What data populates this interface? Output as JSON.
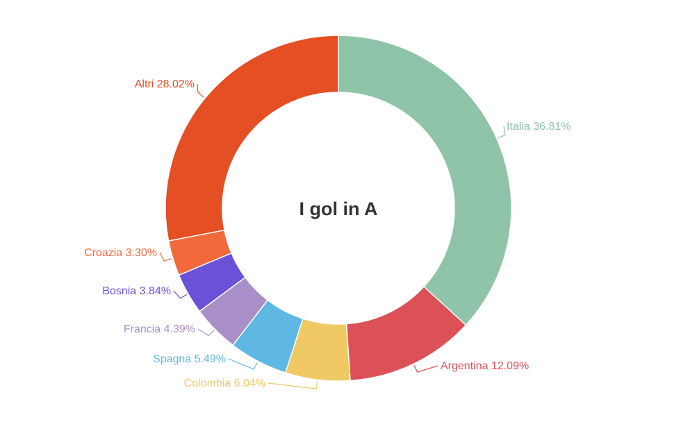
{
  "chart_data": {
    "type": "pie",
    "title": "I gol in A",
    "slices": [
      {
        "label": "Italia",
        "value": 36.81,
        "display": "Italia 36.81%",
        "color": "#8fc4a8"
      },
      {
        "label": "Argentina",
        "value": 12.09,
        "display": "Argentina 12.09%",
        "color": "#dc5158"
      },
      {
        "label": "Colombia",
        "value": 6.04,
        "display": "Colombia 6.04%",
        "color": "#f0c965"
      },
      {
        "label": "Spagna",
        "value": 5.49,
        "display": "Spagna 5.49%",
        "color": "#5fb7e4"
      },
      {
        "label": "Francia",
        "value": 4.39,
        "display": "Francia 4.39%",
        "color": "#a98fc8"
      },
      {
        "label": "Bosnia",
        "value": 3.84,
        "display": "Bosnia 3.84%",
        "color": "#6b50d8"
      },
      {
        "label": "Croazia",
        "value": 3.3,
        "display": "Croazia 3.30%",
        "color": "#f26a3c"
      },
      {
        "label": "Altri",
        "value": 28.02,
        "display": "Altri 28.02%",
        "color": "#e44f24"
      }
    ],
    "legend": "none",
    "labels_outside": true
  }
}
